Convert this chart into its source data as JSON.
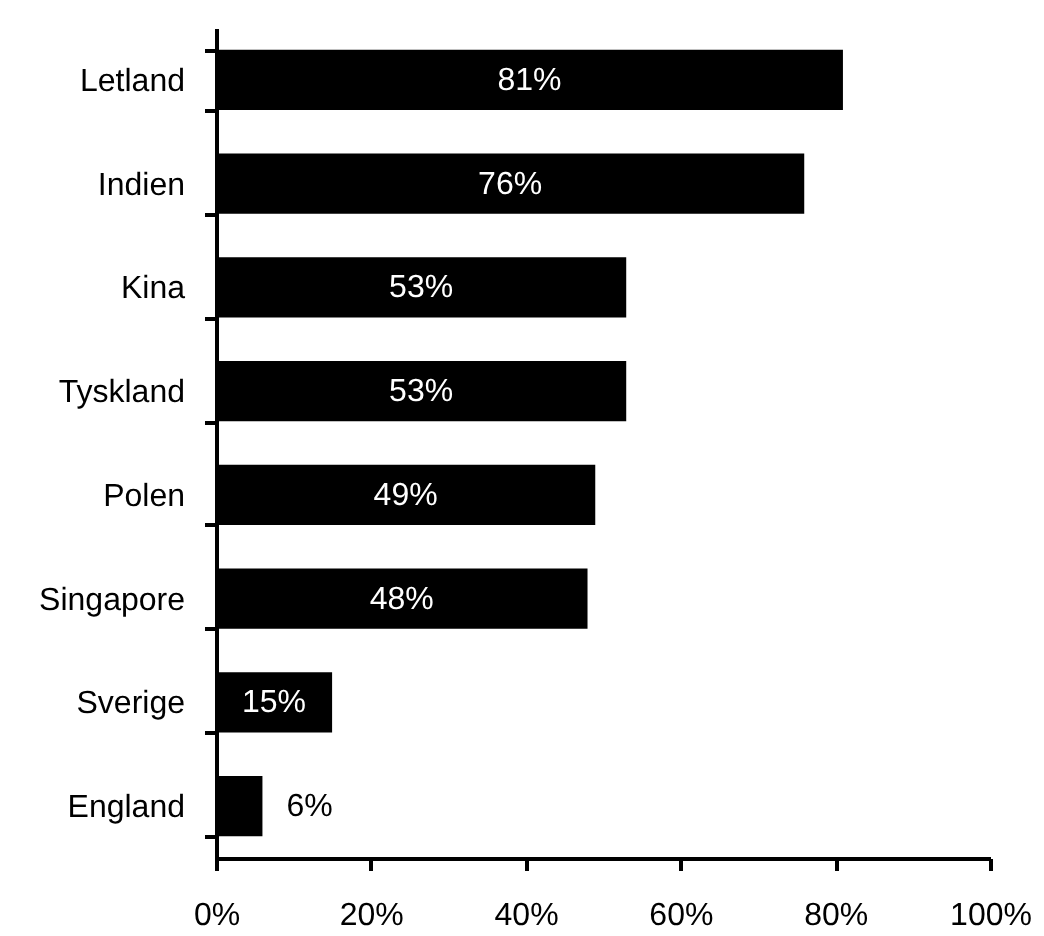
{
  "chart_data": {
    "type": "bar",
    "orientation": "horizontal",
    "categories": [
      "Letland",
      "Indien",
      "Kina",
      "Tyskland",
      "Polen",
      "Singapore",
      "Sverige",
      "England"
    ],
    "values": [
      81,
      76,
      53,
      53,
      49,
      48,
      15,
      6
    ],
    "color": "#000000",
    "value_labels": [
      "81%",
      "76%",
      "53%",
      "53%",
      "49%",
      "48%",
      "15%",
      "6%"
    ],
    "xlim": [
      0,
      100
    ],
    "xticks": [
      {
        "value": 0,
        "label": "0%"
      },
      {
        "value": 20,
        "label": "20%"
      },
      {
        "value": 40,
        "label": "40%"
      },
      {
        "value": 60,
        "label": "60%"
      },
      {
        "value": 80,
        "label": "80%"
      },
      {
        "value": 100,
        "label": "100%"
      }
    ]
  }
}
